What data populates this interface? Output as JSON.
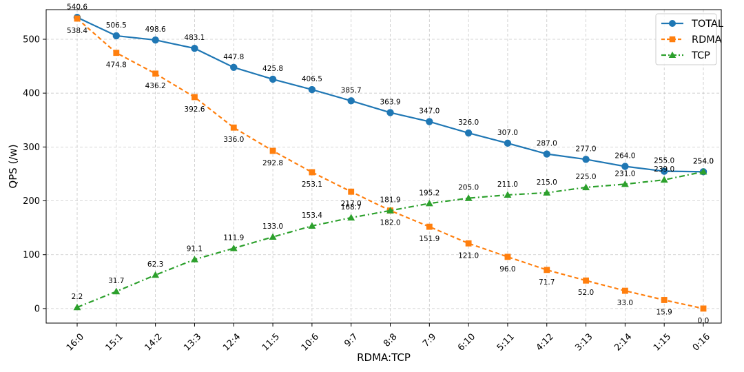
{
  "chart_data": {
    "type": "line",
    "xlabel": "RDMA:TCP",
    "ylabel": "QPS (/w)",
    "ylim": [
      -27,
      555
    ],
    "yticks": [
      0,
      100,
      200,
      300,
      400,
      500
    ],
    "grid": true,
    "legend_position": "top-right",
    "categories": [
      "16:0",
      "15:1",
      "14:2",
      "13:3",
      "12:4",
      "11:5",
      "10:6",
      "9:7",
      "8:8",
      "7:9",
      "6:10",
      "5:11",
      "4:12",
      "3:13",
      "2:14",
      "1:15",
      "0:16"
    ],
    "series": [
      {
        "name": "TOTAL",
        "color": "#1f77b4",
        "marker": "circle",
        "line_style": "solid",
        "label_position": "above",
        "values": [
          540.6,
          506.5,
          498.6,
          483.1,
          447.8,
          425.8,
          406.5,
          385.7,
          363.9,
          347.0,
          326.0,
          307.0,
          287.0,
          277.0,
          264.0,
          255.0,
          254.0
        ]
      },
      {
        "name": "RDMA",
        "color": "#ff7f0e",
        "marker": "square",
        "line_style": "dashed",
        "label_position": "below",
        "values": [
          538.4,
          474.8,
          436.2,
          392.6,
          336.0,
          292.8,
          253.1,
          217.0,
          182.0,
          151.9,
          121.0,
          96.0,
          71.7,
          52.0,
          33.0,
          15.9,
          0.0
        ]
      },
      {
        "name": "TCP",
        "color": "#2ca02c",
        "marker": "triangle",
        "line_style": "dashdot",
        "label_position": "above",
        "values": [
          2.2,
          31.7,
          62.3,
          91.1,
          111.9,
          133.0,
          153.4,
          168.7,
          181.9,
          195.2,
          205.0,
          211.0,
          215.0,
          225.0,
          231.0,
          239.0,
          254.0
        ]
      }
    ]
  }
}
